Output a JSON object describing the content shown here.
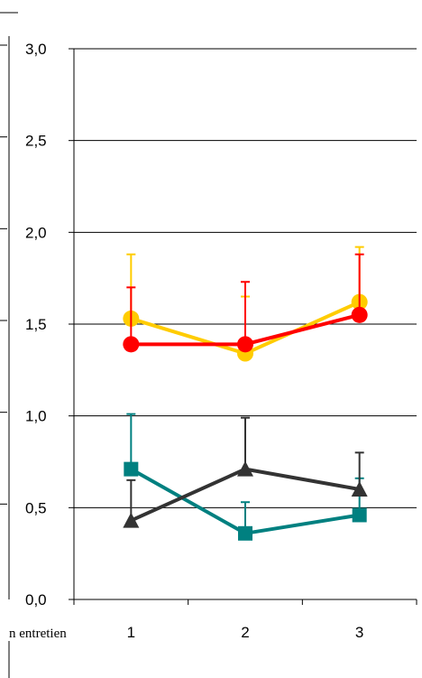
{
  "chart_data": {
    "type": "line",
    "title": "",
    "xlabel": "",
    "ylabel": "",
    "x_axis_partial_label": "n entretien",
    "categories": [
      "1",
      "2",
      "3"
    ],
    "ylim": [
      0,
      3
    ],
    "y_ticks": [
      "0,0",
      "0,5",
      "1,0",
      "1,5",
      "2,0",
      "2,5",
      "3,0"
    ],
    "y_tick_values": [
      0,
      0.5,
      1.0,
      1.5,
      2.0,
      2.5,
      3.0
    ],
    "grid": true,
    "legend": "none",
    "series": [
      {
        "color": "#ffcc00",
        "marker": "circle",
        "values": [
          1.53,
          1.34,
          1.62
        ],
        "error_upper": [
          1.88,
          1.65,
          1.92
        ]
      },
      {
        "color": "#ff0000",
        "marker": "circle",
        "values": [
          1.39,
          1.39,
          1.55
        ],
        "error_upper": [
          1.7,
          1.73,
          1.88
        ]
      },
      {
        "color": "#008080",
        "marker": "square",
        "values": [
          0.71,
          0.36,
          0.46
        ],
        "error_upper": [
          1.01,
          0.53,
          0.66
        ]
      },
      {
        "color": "#333333",
        "marker": "triangle",
        "values": [
          0.43,
          0.71,
          0.6
        ],
        "error_upper": [
          0.65,
          0.99,
          0.8
        ]
      }
    ]
  }
}
